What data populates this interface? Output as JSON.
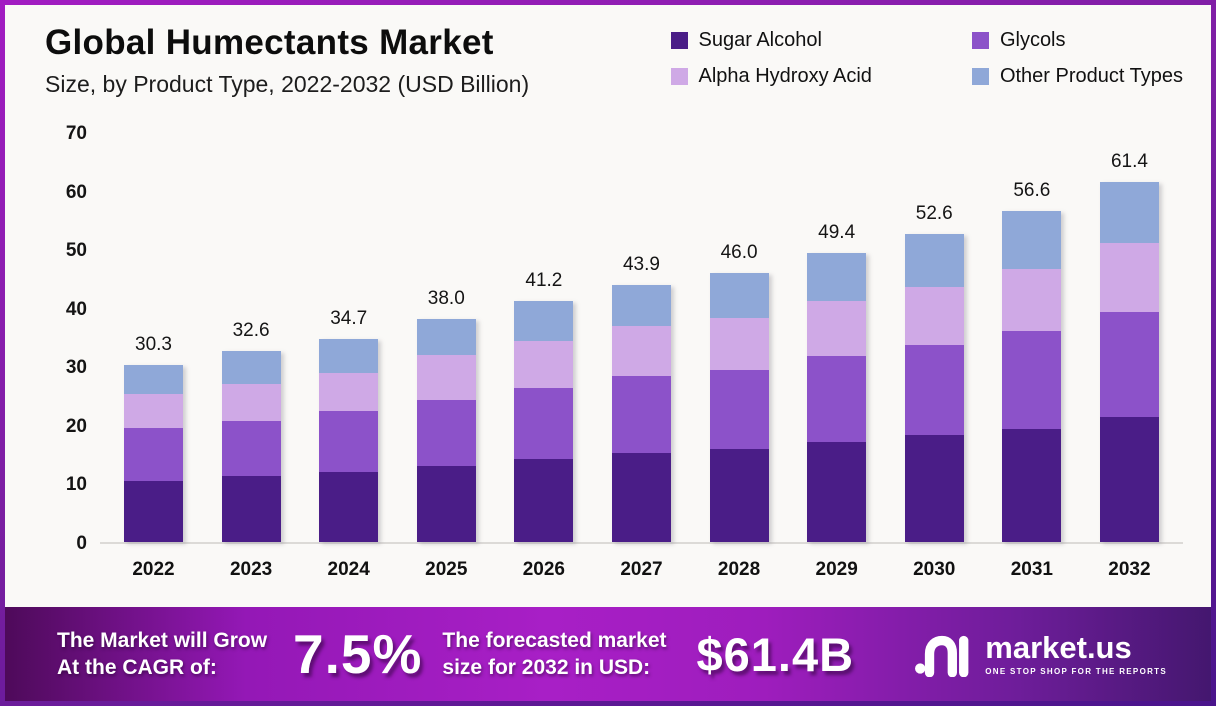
{
  "header": {
    "title": "Global Humectants Market",
    "subtitle": "Size, by Product Type, 2022-2032 (USD Billion)"
  },
  "legend": [
    {
      "label": "Sugar Alcohol",
      "color": "#4a1d87"
    },
    {
      "label": "Glycols",
      "color": "#8c52c9"
    },
    {
      "label": "Alpha Hydroxy Acid",
      "color": "#cfa9e6"
    },
    {
      "label": "Other Product Types",
      "color": "#8fa8d8"
    }
  ],
  "chart_data": {
    "type": "bar",
    "stacked": true,
    "title": "Global Humectants Market Size, by Product Type, 2022-2032 (USD Billion)",
    "categories": [
      "2022",
      "2023",
      "2024",
      "2025",
      "2026",
      "2027",
      "2028",
      "2029",
      "2030",
      "2031",
      "2032"
    ],
    "series": [
      {
        "name": "Sugar Alcohol",
        "color": "#4a1d87",
        "values": [
          10.4,
          11.3,
          12.0,
          13.0,
          14.2,
          15.2,
          15.8,
          17.1,
          18.2,
          19.3,
          21.3
        ]
      },
      {
        "name": "Glycols",
        "color": "#8c52c9",
        "values": [
          9.1,
          9.3,
          10.3,
          11.3,
          12.1,
          13.1,
          13.5,
          14.6,
          15.4,
          16.7,
          17.9
        ]
      },
      {
        "name": "Alpha Hydroxy Acid",
        "color": "#cfa9e6",
        "values": [
          5.8,
          6.4,
          6.6,
          7.6,
          8.1,
          8.5,
          8.9,
          9.4,
          9.9,
          10.6,
          11.8
        ]
      },
      {
        "name": "Other Product Types",
        "color": "#8fa8d8",
        "values": [
          5.0,
          5.6,
          5.8,
          6.1,
          6.8,
          7.1,
          7.8,
          8.3,
          9.1,
          10.0,
          10.4
        ]
      }
    ],
    "totals": [
      30.3,
      32.6,
      34.7,
      38.0,
      41.2,
      43.9,
      46.0,
      49.4,
      52.6,
      56.6,
      61.4
    ],
    "y_ticks": [
      0,
      10,
      20,
      30,
      40,
      50,
      60,
      70
    ],
    "ylim": [
      0,
      70
    ],
    "xlabel": "",
    "ylabel": "USD Billion",
    "grid": false,
    "legend_position": "top-right"
  },
  "banner": {
    "cagr_label_line1": "The Market will Grow",
    "cagr_label_line2": "At the CAGR of:",
    "cagr_value": "7.5%",
    "forecast_label_line1": "The forecasted market",
    "forecast_label_line2": "size for 2032 in USD:",
    "forecast_value": "$61.4B",
    "brand_name": "market.us",
    "brand_tagline": "ONE STOP SHOP FOR THE REPORTS"
  },
  "colors": {
    "accent_dark_purple": "#4a1d87",
    "accent_purple": "#8c52c9",
    "accent_lavender": "#cfa9e6",
    "accent_blue": "#8fa8d8",
    "banner_purple": "#a81fc6",
    "frame_purple": "#7b1fa2"
  }
}
